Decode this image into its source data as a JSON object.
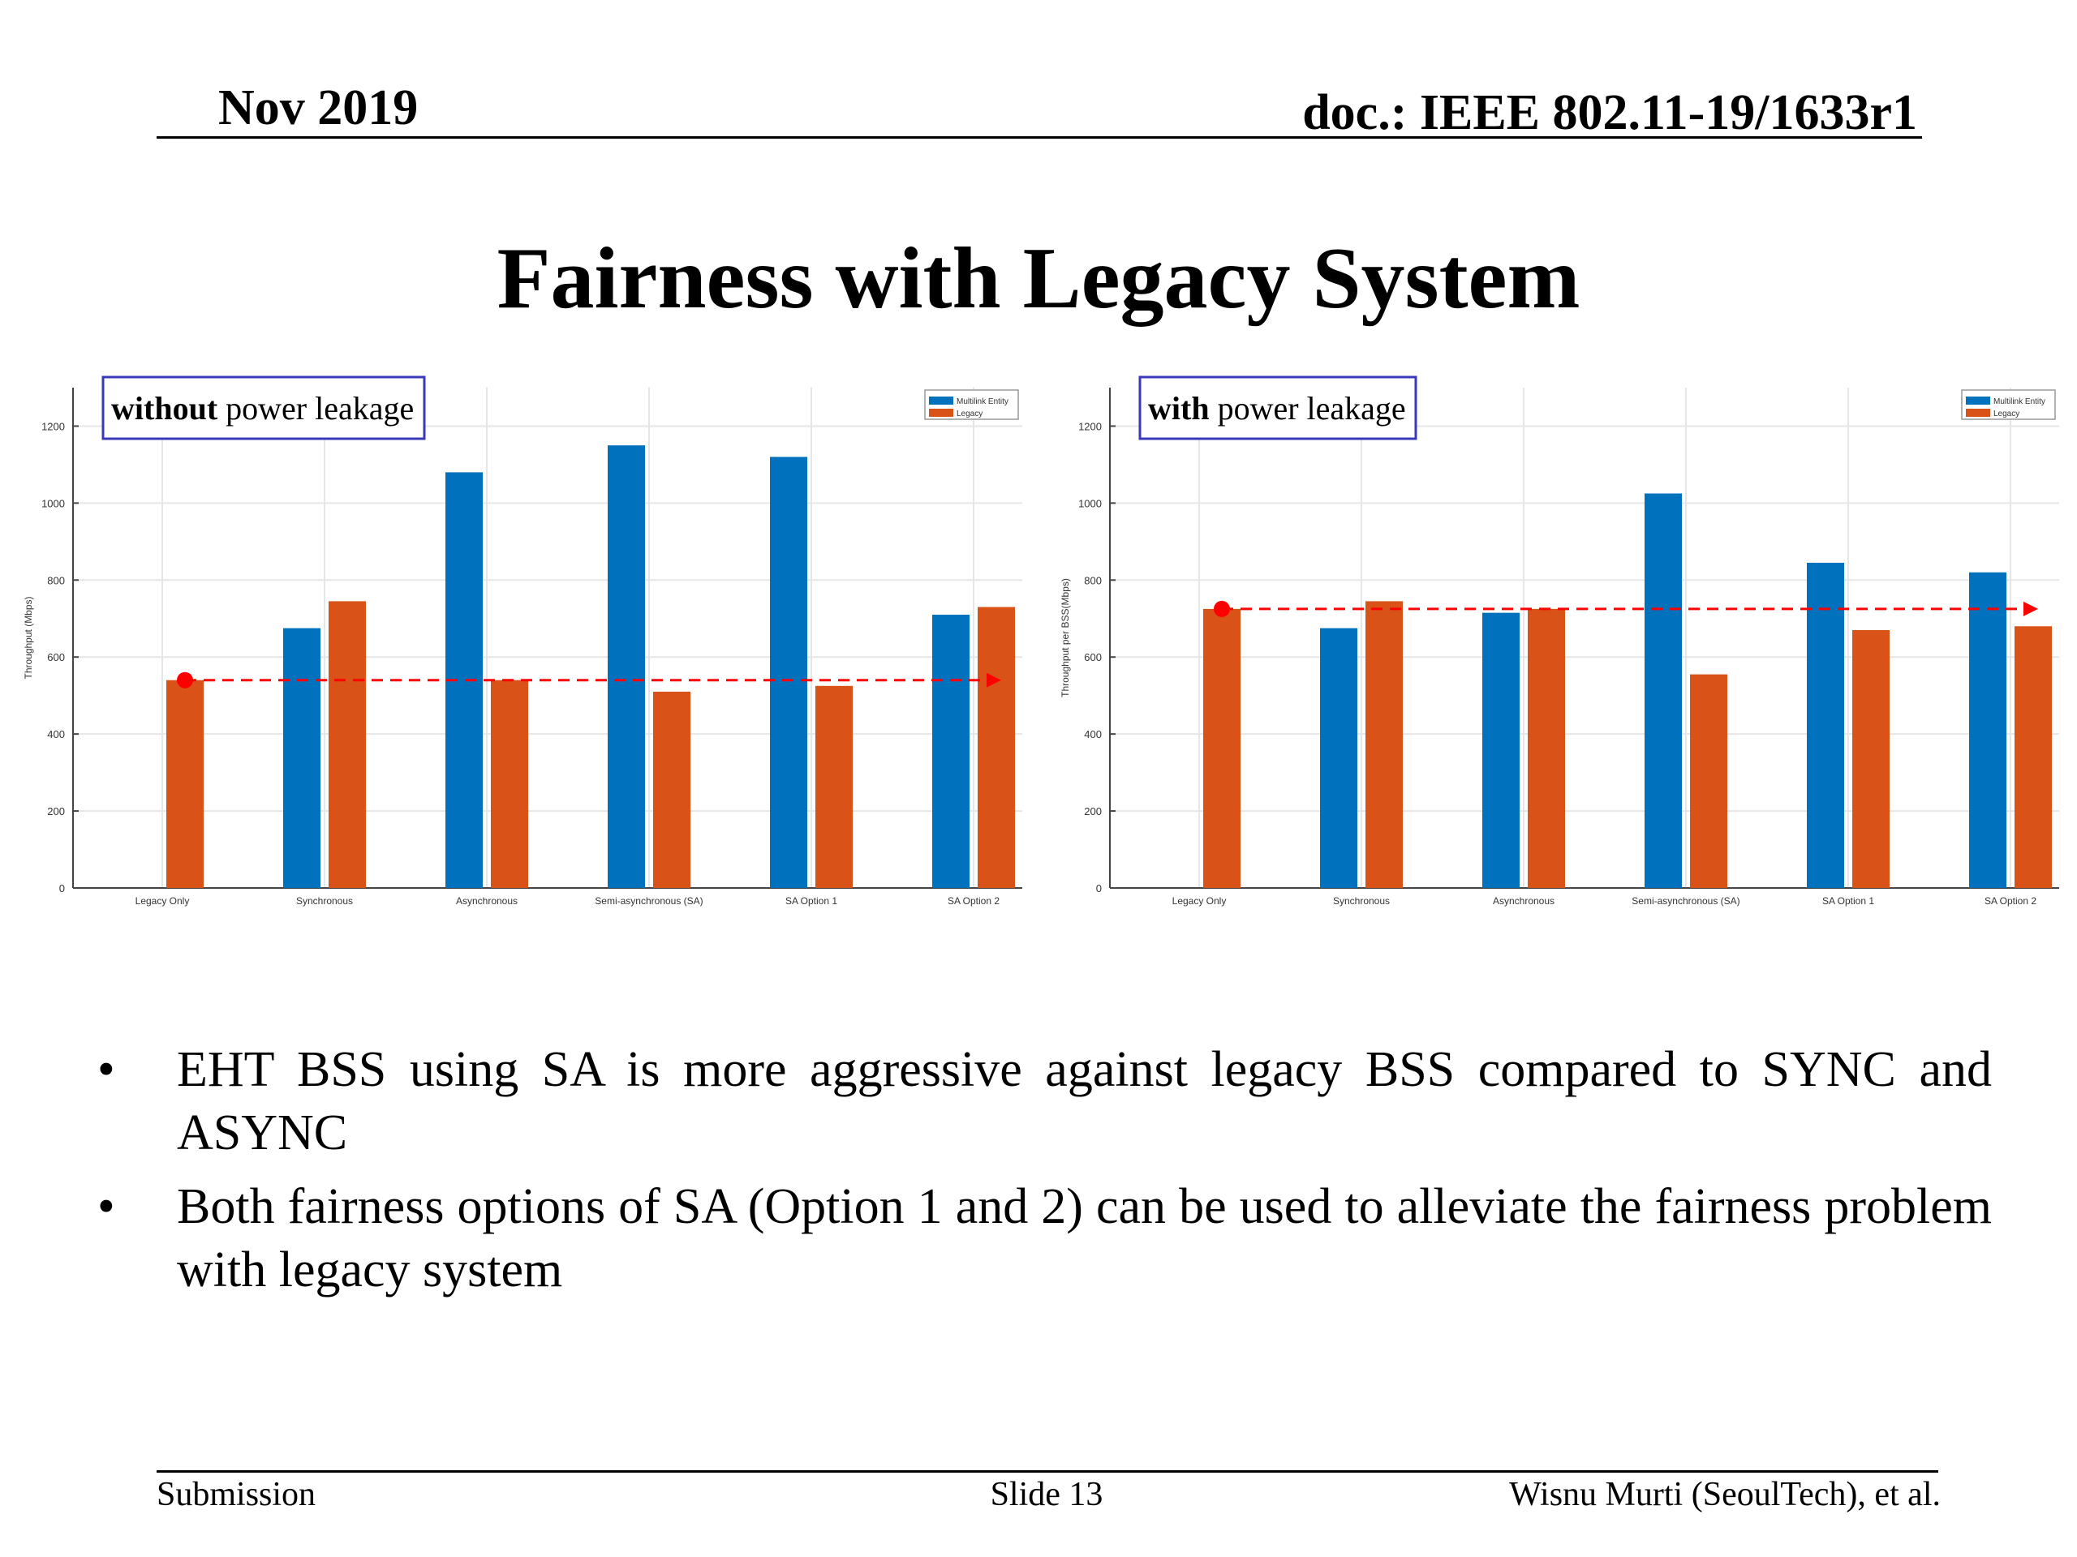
{
  "header": {
    "date": "Nov 2019",
    "doc": "doc.: IEEE 802.11-19/1633r1"
  },
  "title": "Fairness with Legacy System",
  "chart_data": [
    {
      "type": "bar",
      "box_label_bold": "without",
      "box_label_rest": " power leakage",
      "ylabel": "Throughput (Mbps)",
      "ylim": [
        0,
        1300
      ],
      "yticks": [
        0,
        200,
        400,
        600,
        800,
        1000,
        1200
      ],
      "grid": true,
      "legend_position": "top-right",
      "categories": [
        "Legacy Only",
        "Synchronous",
        "Asynchronous",
        "Semi-asynchronous (SA)",
        "SA Option 1",
        "SA Option 2"
      ],
      "series": [
        {
          "name": "Multilink Entity",
          "color": "#0072bd",
          "values": [
            null,
            675,
            1080,
            1150,
            1120,
            710
          ]
        },
        {
          "name": "Legacy",
          "color": "#d95319",
          "values": [
            540,
            745,
            540,
            510,
            525,
            730
          ]
        }
      ],
      "reference_line": {
        "value": 540,
        "color": "#ff0000"
      }
    },
    {
      "type": "bar",
      "box_label_bold": "with",
      "box_label_rest": " power leakage",
      "ylabel": "Throughput per BSS(Mbps)",
      "ylim": [
        0,
        1300
      ],
      "yticks": [
        0,
        200,
        400,
        600,
        800,
        1000,
        1200
      ],
      "grid": true,
      "legend_position": "top-right",
      "categories": [
        "Legacy Only",
        "Synchronous",
        "Asynchronous",
        "Semi-asynchronous (SA)",
        "SA Option 1",
        "SA Option 2"
      ],
      "series": [
        {
          "name": "Multilink Entity",
          "color": "#0072bd",
          "values": [
            null,
            675,
            715,
            1025,
            845,
            820
          ]
        },
        {
          "name": "Legacy",
          "color": "#d95319",
          "values": [
            725,
            745,
            725,
            555,
            670,
            680
          ]
        }
      ],
      "reference_line": {
        "value": 725,
        "color": "#ff0000"
      }
    }
  ],
  "bullets": [
    "EHT BSS using SA is more aggressive against legacy BSS compared to SYNC and ASYNC",
    "Both fairness options of SA (Option 1 and 2) can be used to alleviate the fairness problem with legacy system"
  ],
  "bullet_symbol": "•",
  "footer": {
    "left": "Submission",
    "center": "Slide 13",
    "right": "Wisnu Murti (SeoulTech), et al."
  }
}
